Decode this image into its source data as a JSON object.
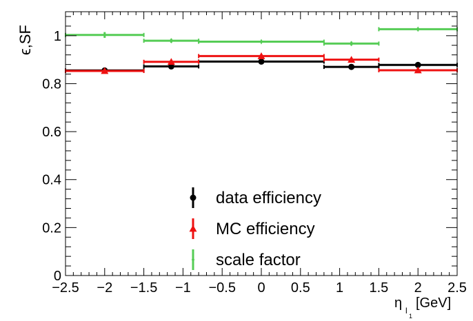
{
  "chart_data": {
    "type": "scatter",
    "title": "",
    "xlabel": "η",
    "xlabel_sub": "l",
    "xlabel_subsub": "1",
    "xlabel_unit": "[GeV]",
    "ylabel": "ϵ,SF",
    "xlim": [
      -2.5,
      2.5
    ],
    "ylim": [
      0,
      1.1
    ],
    "x_ticks": [
      -2.5,
      -2,
      -1.5,
      -1,
      -0.5,
      0,
      0.5,
      1,
      1.5,
      2,
      2.5
    ],
    "x_tick_labels": [
      "−2.5",
      "−2",
      "−1.5",
      "−1",
      "−0.5",
      "0",
      "0.5",
      "1",
      "1.5",
      "2",
      "2.5"
    ],
    "y_ticks": [
      0,
      0.2,
      0.4,
      0.6,
      0.8,
      1
    ],
    "y_tick_labels": [
      "0",
      "0.2",
      "0.4",
      "0.6",
      "0.8",
      "1"
    ],
    "bins": [
      [
        -2.5,
        -1.5
      ],
      [
        -1.5,
        -0.8
      ],
      [
        -0.8,
        0.8
      ],
      [
        0.8,
        1.5
      ],
      [
        1.5,
        2.5
      ]
    ],
    "grid": false,
    "legend_position": "bottom-center",
    "series": [
      {
        "name": "data efficiency",
        "marker": "circle",
        "color": "#000000",
        "x": [
          -2.0,
          -1.15,
          0.0,
          1.15,
          2.0
        ],
        "y": [
          0.855,
          0.872,
          0.892,
          0.87,
          0.878
        ],
        "yerr": [
          0.004,
          0.005,
          0.002,
          0.005,
          0.004
        ]
      },
      {
        "name": "MC efficiency",
        "marker": "triangle",
        "color": "#ee1111",
        "x": [
          -2.0,
          -1.15,
          0.0,
          1.15,
          2.0
        ],
        "y": [
          0.853,
          0.891,
          0.915,
          0.9,
          0.856
        ],
        "yerr": [
          0.004,
          0.005,
          0.002,
          0.005,
          0.004
        ]
      },
      {
        "name": "scale factor",
        "marker": "diamond",
        "color": "#55cc55",
        "x": [
          -2.0,
          -1.15,
          0.0,
          1.15,
          2.0
        ],
        "y": [
          1.003,
          0.979,
          0.975,
          0.967,
          1.027
        ],
        "yerr": [
          0.012,
          0.008,
          0.004,
          0.008,
          0.006
        ]
      }
    ]
  }
}
